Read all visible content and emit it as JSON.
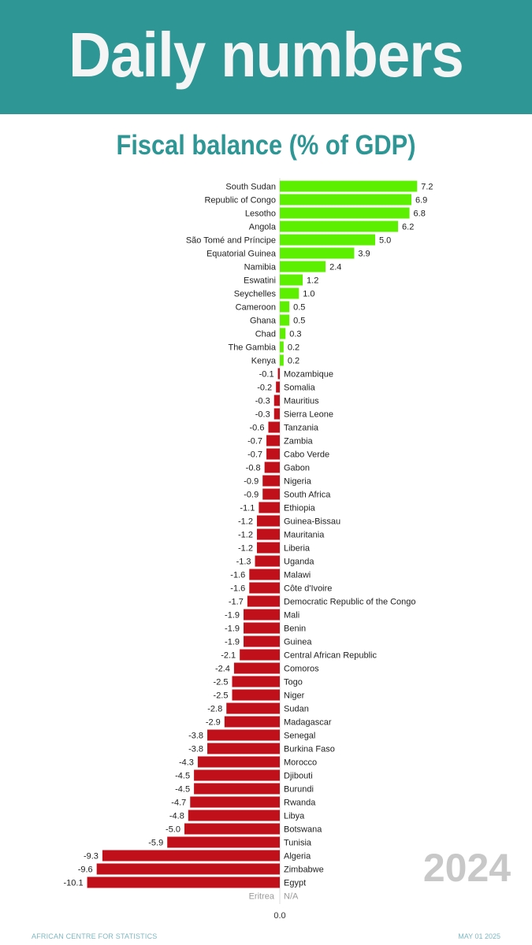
{
  "header": {
    "title": "Daily numbers"
  },
  "footer": {
    "source": "AFRICAN CENTRE FOR STATISTICS",
    "date": "MAY 01 2025"
  },
  "colors": {
    "banner": "#2e9795",
    "positive": "#5cf000",
    "negative": "#c0111b",
    "na_text": "#9a9a9a"
  },
  "chart_data": {
    "type": "bar",
    "orientation": "horizontal",
    "title": "Fiscal balance (% of GDP)",
    "year": "2024",
    "zero_label": "0.0",
    "categories": [
      "South Sudan",
      "Republic of Congo",
      "Lesotho",
      "Angola",
      "São Tomé and Príncipe",
      "Equatorial Guinea",
      "Namibia",
      "Eswatini",
      "Seychelles",
      "Cameroon",
      "Ghana",
      "Chad",
      "The Gambia",
      "Kenya",
      "Mozambique",
      "Somalia",
      "Mauritius",
      "Sierra Leone",
      "Tanzania",
      "Zambia",
      "Cabo Verde",
      "Gabon",
      "Nigeria",
      "South Africa",
      "Ethiopia",
      "Guinea-Bissau",
      "Mauritania",
      "Liberia",
      "Uganda",
      "Malawi",
      "Côte d'Ivoire",
      "Democratic Republic of the Congo",
      "Mali",
      "Benin",
      "Guinea",
      "Central African Republic",
      "Comoros",
      "Togo",
      "Niger",
      "Sudan",
      "Madagascar",
      "Senegal",
      "Burkina Faso",
      "Morocco",
      "Djibouti",
      "Burundi",
      "Rwanda",
      "Libya",
      "Botswana",
      "Tunisia",
      "Algeria",
      "Zimbabwe",
      "Egypt",
      "Eritrea"
    ],
    "values": [
      7.2,
      6.9,
      6.8,
      6.2,
      5.0,
      3.9,
      2.4,
      1.2,
      1.0,
      0.5,
      0.5,
      0.3,
      0.2,
      0.2,
      -0.1,
      -0.2,
      -0.3,
      -0.3,
      -0.6,
      -0.7,
      -0.7,
      -0.8,
      -0.9,
      -0.9,
      -1.1,
      -1.2,
      -1.2,
      -1.2,
      -1.3,
      -1.6,
      -1.6,
      -1.7,
      -1.9,
      -1.9,
      -1.9,
      -2.1,
      -2.4,
      -2.5,
      -2.5,
      -2.8,
      -2.9,
      -3.8,
      -3.8,
      -4.3,
      -4.5,
      -4.5,
      -4.7,
      -4.8,
      -5.0,
      -5.9,
      -9.3,
      -9.6,
      -10.1,
      null
    ],
    "labels": [
      "7.2",
      "6.9",
      "6.8",
      "6.2",
      "5.0",
      "3.9",
      "2.4",
      "1.2",
      "1.0",
      "0.5",
      "0.5",
      "0.3",
      "0.2",
      "0.2",
      "-0.1",
      "-0.2",
      "-0.3",
      "-0.3",
      "-0.6",
      "-0.7",
      "-0.7",
      "-0.8",
      "-0.9",
      "-0.9",
      "-1.1",
      "-1.2",
      "-1.2",
      "-1.2",
      "-1.3",
      "-1.6",
      "-1.6",
      "-1.7",
      "-1.9",
      "-1.9",
      "-1.9",
      "-2.1",
      "-2.4",
      "-2.5",
      "-2.5",
      "-2.8",
      "-2.9",
      "-3.8",
      "-3.8",
      "-4.3",
      "-4.5",
      "-4.5",
      "-4.7",
      "-4.8",
      "-5.0",
      "-5.9",
      "-9.3",
      "-9.6",
      "-10.1",
      "N/A"
    ],
    "xlim": [
      -10.5,
      7.5
    ],
    "grid": false,
    "legend": "none"
  }
}
